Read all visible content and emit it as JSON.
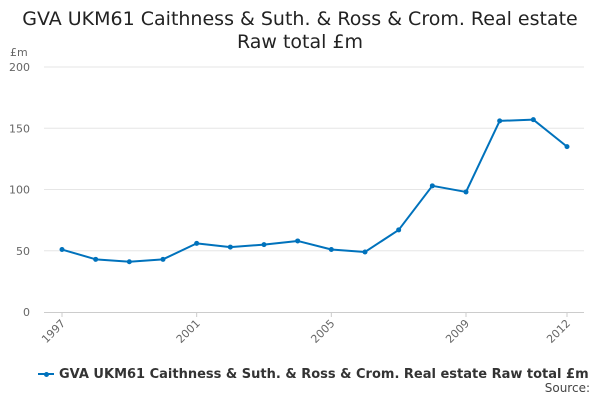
{
  "chart_data": {
    "type": "line",
    "title_lines": [
      "GVA UKM61 Caithness & Suth. & Ross & Crom. Real estate",
      "Raw total £m"
    ],
    "ylabel": "£m",
    "ylim": [
      0,
      200
    ],
    "yticks": [
      0,
      50,
      100,
      150,
      200
    ],
    "x": [
      1997,
      1998,
      1999,
      2000,
      2001,
      2002,
      2003,
      2004,
      2005,
      2006,
      2007,
      2008,
      2009,
      2010,
      2011,
      2012
    ],
    "xticks": [
      "1997",
      "2001",
      "2005",
      "2009",
      "2012"
    ],
    "grid": true,
    "legend_position": "bottom",
    "series": [
      {
        "name": "GVA UKM61 Caithness & Suth. & Ross & Crom. Real estate Raw total £m",
        "color": "#0072bc",
        "values": [
          51,
          43,
          41,
          43,
          56,
          53,
          55,
          58,
          51,
          49,
          67,
          103,
          98,
          156,
          157,
          135
        ]
      }
    ]
  },
  "footer": {
    "source_label": "Source:"
  }
}
